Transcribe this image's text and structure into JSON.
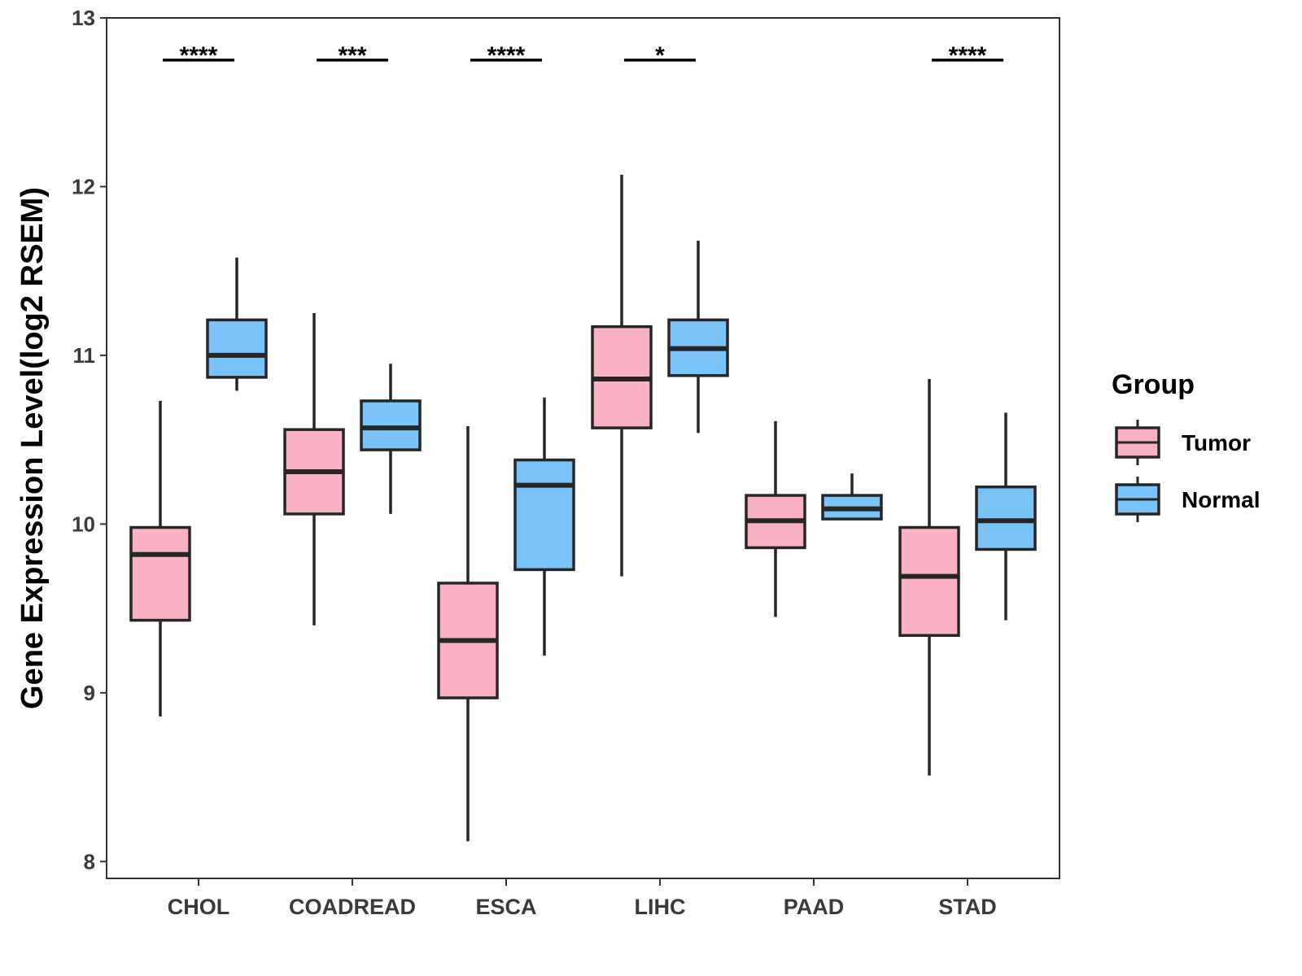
{
  "chart_data": {
    "type": "box",
    "title": "",
    "xlabel": "",
    "ylabel": "Gene Expression Level(log2 RSEM)",
    "ylim": [
      7.9,
      13
    ],
    "yticks": [
      8,
      9,
      10,
      11,
      12,
      13
    ],
    "categories": [
      "CHOL",
      "COADREAD",
      "ESCA",
      "LIHC",
      "PAAD",
      "STAD"
    ],
    "legend": {
      "title": "Group",
      "position": "right",
      "entries": [
        "Tumor",
        "Normal"
      ]
    },
    "colors": {
      "Tumor": "#F9B1C3",
      "Normal": "#79C3F8",
      "outline": "#262626"
    },
    "series": [
      {
        "name": "Tumor",
        "boxes": [
          {
            "min": 8.86,
            "q1": 9.43,
            "median": 9.82,
            "q3": 9.98,
            "max": 10.73
          },
          {
            "min": 9.4,
            "q1": 10.06,
            "median": 10.31,
            "q3": 10.56,
            "max": 11.25
          },
          {
            "min": 8.12,
            "q1": 8.97,
            "median": 9.31,
            "q3": 9.65,
            "max": 10.58
          },
          {
            "min": 9.69,
            "q1": 10.57,
            "median": 10.86,
            "q3": 11.17,
            "max": 12.07
          },
          {
            "min": 9.45,
            "q1": 9.86,
            "median": 10.02,
            "q3": 10.17,
            "max": 10.61
          },
          {
            "min": 8.51,
            "q1": 9.34,
            "median": 9.69,
            "q3": 9.98,
            "max": 10.86
          }
        ]
      },
      {
        "name": "Normal",
        "boxes": [
          {
            "min": 10.79,
            "q1": 10.87,
            "median": 11.0,
            "q3": 11.21,
            "max": 11.58
          },
          {
            "min": 10.06,
            "q1": 10.44,
            "median": 10.57,
            "q3": 10.73,
            "max": 10.95
          },
          {
            "min": 9.22,
            "q1": 9.73,
            "median": 10.23,
            "q3": 10.38,
            "max": 10.75
          },
          {
            "min": 10.54,
            "q1": 10.88,
            "median": 11.04,
            "q3": 11.21,
            "max": 11.68
          },
          {
            "min": 10.03,
            "q1": 10.03,
            "median": 10.09,
            "q3": 10.17,
            "max": 10.3
          },
          {
            "min": 9.43,
            "q1": 9.85,
            "median": 10.02,
            "q3": 10.22,
            "max": 10.66
          }
        ]
      }
    ],
    "significance": [
      "****",
      "***",
      "****",
      "*",
      "",
      "****"
    ],
    "significance_y": 12.75,
    "grid": false
  }
}
